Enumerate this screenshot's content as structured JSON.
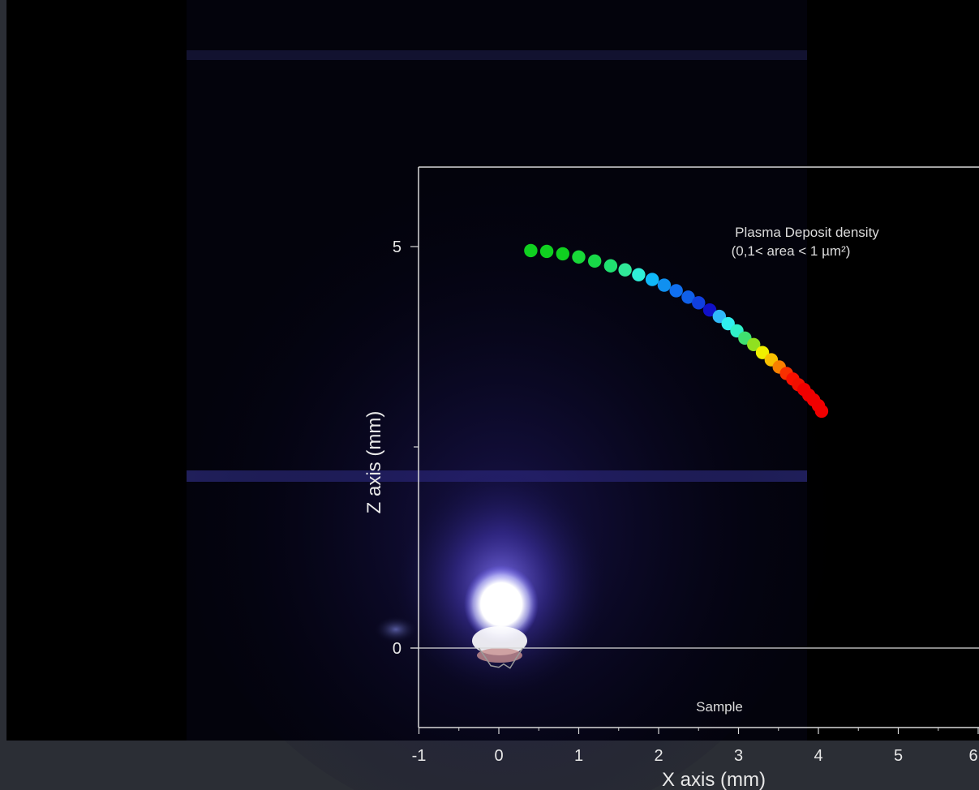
{
  "chart_data": {
    "type": "scatter",
    "title": "",
    "xlabel": "X axis (mm)",
    "ylabel": "Z axis (mm)",
    "xlim": [
      -1.2,
      6.0
    ],
    "ylim": [
      -1.0,
      6.0
    ],
    "x_ticks": [
      "-1",
      "0",
      "1",
      "2",
      "3",
      "4",
      "5",
      "6"
    ],
    "y_ticks": [
      "0",
      "5"
    ],
    "grid": false,
    "background": "plasma photograph",
    "annotations": {
      "density_line1": "Plasma Deposit density",
      "density_line2": "(0,1< area < 1 µm²)",
      "sample": "Sample"
    },
    "series": [
      {
        "points": [
          {
            "x": 0.4,
            "z": 4.95,
            "color": "#10d020"
          },
          {
            "x": 0.6,
            "z": 4.94,
            "color": "#10d020"
          },
          {
            "x": 0.8,
            "z": 4.91,
            "color": "#10d020"
          },
          {
            "x": 1.0,
            "z": 4.87,
            "color": "#18d838"
          },
          {
            "x": 1.2,
            "z": 4.82,
            "color": "#18d848"
          },
          {
            "x": 1.4,
            "z": 4.76,
            "color": "#20e070"
          },
          {
            "x": 1.58,
            "z": 4.71,
            "color": "#30e898"
          },
          {
            "x": 1.75,
            "z": 4.65,
            "color": "#30f0d8"
          },
          {
            "x": 1.92,
            "z": 4.59,
            "color": "#10b8f8"
          },
          {
            "x": 2.07,
            "z": 4.52,
            "color": "#1090f0"
          },
          {
            "x": 2.22,
            "z": 4.45,
            "color": "#1070f0"
          },
          {
            "x": 2.37,
            "z": 4.37,
            "color": "#1060e8"
          },
          {
            "x": 2.5,
            "z": 4.3,
            "color": "#1040e0"
          },
          {
            "x": 2.64,
            "z": 4.21,
            "color": "#1010c8"
          },
          {
            "x": 2.76,
            "z": 4.13,
            "color": "#30b8f8"
          },
          {
            "x": 2.87,
            "z": 4.04,
            "color": "#30f0f0"
          },
          {
            "x": 2.98,
            "z": 3.95,
            "color": "#30f0c8"
          },
          {
            "x": 3.08,
            "z": 3.86,
            "color": "#40e070"
          },
          {
            "x": 3.19,
            "z": 3.78,
            "color": "#90e020"
          },
          {
            "x": 3.3,
            "z": 3.68,
            "color": "#f0f000"
          },
          {
            "x": 3.41,
            "z": 3.59,
            "color": "#f8c000"
          },
          {
            "x": 3.51,
            "z": 3.5,
            "color": "#f88000"
          },
          {
            "x": 3.6,
            "z": 3.42,
            "color": "#f83000"
          },
          {
            "x": 3.68,
            "z": 3.35,
            "color": "#f81000"
          },
          {
            "x": 3.75,
            "z": 3.28,
            "color": "#f01000"
          },
          {
            "x": 3.82,
            "z": 3.22,
            "color": "#f00000"
          },
          {
            "x": 3.88,
            "z": 3.15,
            "color": "#f00000"
          },
          {
            "x": 3.94,
            "z": 3.09,
            "color": "#f00000"
          },
          {
            "x": 4.0,
            "z": 3.02,
            "color": "#f00000"
          },
          {
            "x": 4.04,
            "z": 2.95,
            "color": "#f00000"
          }
        ]
      }
    ],
    "sample_profile": [
      {
        "x": -0.25,
        "z": 0.0
      },
      {
        "x": -0.18,
        "z": -0.1
      },
      {
        "x": -0.1,
        "z": -0.22
      },
      {
        "x": 0.0,
        "z": -0.24
      },
      {
        "x": 0.06,
        "z": -0.2
      },
      {
        "x": 0.14,
        "z": -0.25
      },
      {
        "x": 0.22,
        "z": -0.12
      },
      {
        "x": 0.3,
        "z": 0.0
      }
    ]
  }
}
